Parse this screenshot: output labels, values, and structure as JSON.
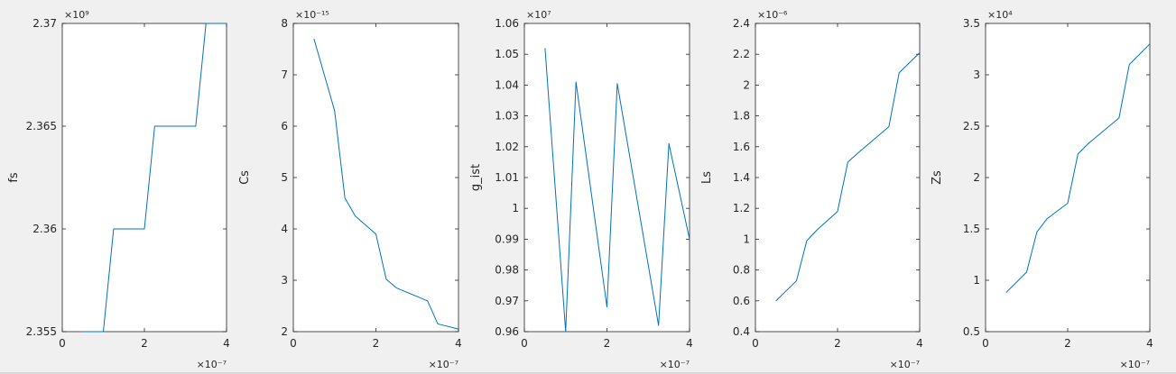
{
  "figure": {
    "background": "#f0f0f0",
    "axes_color": "#262626",
    "line_color": "#0072bd"
  },
  "chart_data": [
    {
      "type": "line",
      "ylabel": "fs",
      "xlim": [
        0,
        4e-07
      ],
      "xticks": [
        "0",
        "2",
        "4"
      ],
      "x_exponent": "×10⁻⁷",
      "ylim": [
        2355000000.0,
        2370000000.0
      ],
      "yticks": [
        "2.355",
        "2.36",
        "2.365",
        "2.37"
      ],
      "y_exponent": "×10⁹",
      "series": [
        {
          "x": [
            5e-08,
            1e-07,
            1.25e-07,
            1.5e-07,
            2e-07,
            2.25e-07,
            2.5e-07,
            3.25e-07,
            3.5e-07,
            4e-07
          ],
          "y": [
            2355000000.0,
            2355000000.0,
            2360000000.0,
            2360000000.0,
            2360000000.0,
            2365000000.0,
            2365000000.0,
            2365000000.0,
            2370000000.0,
            2370000000.0
          ]
        }
      ]
    },
    {
      "type": "line",
      "ylabel": "Cs",
      "xlim": [
        0,
        4e-07
      ],
      "xticks": [
        "0",
        "2",
        "4"
      ],
      "x_exponent": "×10⁻⁷",
      "ylim": [
        2e-15,
        8e-15
      ],
      "yticks": [
        "2",
        "3",
        "4",
        "5",
        "6",
        "7",
        "8"
      ],
      "y_exponent": "×10⁻¹⁵",
      "series": [
        {
          "x": [
            5e-08,
            1e-07,
            1.25e-07,
            1.5e-07,
            2e-07,
            2.25e-07,
            2.5e-07,
            3.25e-07,
            3.5e-07,
            4e-07
          ],
          "y": [
            7.7e-15,
            6.3e-15,
            4.6e-15,
            4.25e-15,
            3.9e-15,
            3.02e-15,
            2.85e-15,
            2.6e-15,
            2.15e-15,
            2.05e-15
          ]
        }
      ]
    },
    {
      "type": "line",
      "ylabel": "g_ist",
      "xlim": [
        0,
        4e-07
      ],
      "xticks": [
        "0",
        "2",
        "4"
      ],
      "x_exponent": "×10⁻⁷",
      "ylim": [
        9600000.0,
        10600000.0
      ],
      "yticks": [
        "0.96",
        "0.97",
        "0.98",
        "0.99",
        "1",
        "1.01",
        "1.02",
        "1.03",
        "1.04",
        "1.05",
        "1.06"
      ],
      "y_exponent": "×10⁷",
      "series": [
        {
          "x": [
            5e-08,
            1e-07,
            1.25e-07,
            2e-07,
            2.25e-07,
            3.25e-07,
            3.5e-07,
            4e-07
          ],
          "y": [
            10520000.0,
            9600000.0,
            10410000.0,
            9680000.0,
            10405000.0,
            9620000.0,
            10210000.0,
            9900000.0
          ]
        }
      ]
    },
    {
      "type": "line",
      "ylabel": "Ls",
      "xlim": [
        0,
        4e-07
      ],
      "xticks": [
        "0",
        "2",
        "4"
      ],
      "x_exponent": "×10⁻⁷",
      "ylim": [
        4e-07,
        2.4e-06
      ],
      "yticks": [
        "0.4",
        "0.6",
        "0.8",
        "1",
        "1.2",
        "1.4",
        "1.6",
        "1.8",
        "2",
        "2.2",
        "2.4"
      ],
      "y_exponent": "×10⁻⁶",
      "series": [
        {
          "x": [
            5e-08,
            1e-07,
            1.25e-07,
            1.5e-07,
            2e-07,
            2.25e-07,
            2.5e-07,
            3.25e-07,
            3.5e-07,
            4e-07
          ],
          "y": [
            6e-07,
            7.3e-07,
            9.9e-07,
            1.06e-06,
            1.18e-06,
            1.5e-06,
            1.56e-06,
            1.73e-06,
            2.08e-06,
            2.21e-06
          ]
        }
      ]
    },
    {
      "type": "line",
      "ylabel": "Zs",
      "xlim": [
        0,
        4e-07
      ],
      "xticks": [
        "0",
        "2",
        "4"
      ],
      "x_exponent": "×10⁻⁷",
      "ylim": [
        5000,
        35000
      ],
      "yticks": [
        "0.5",
        "1",
        "1.5",
        "2",
        "2.5",
        "3",
        "3.5"
      ],
      "y_exponent": "×10⁴",
      "series": [
        {
          "x": [
            5e-08,
            1e-07,
            1.25e-07,
            1.5e-07,
            2e-07,
            2.25e-07,
            2.5e-07,
            3.25e-07,
            3.5e-07,
            4e-07
          ],
          "y": [
            8800,
            10800,
            14700,
            16000,
            17500,
            22300,
            23300,
            25800,
            31000,
            33000
          ]
        }
      ]
    }
  ]
}
